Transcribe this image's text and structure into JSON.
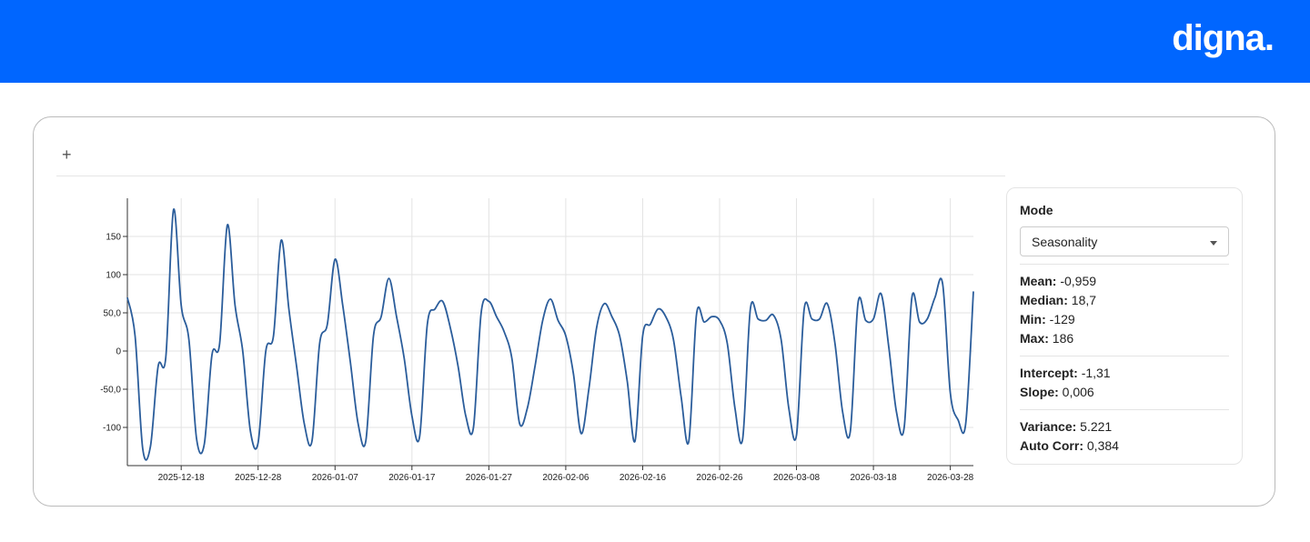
{
  "header": {
    "brand": "digna."
  },
  "toolbar": {
    "add": "+"
  },
  "chart_data": {
    "type": "line",
    "color": "#2b5d9b",
    "grid": true,
    "x": [
      "2025-12-11",
      "2025-12-12",
      "2025-12-13",
      "2025-12-14",
      "2025-12-15",
      "2025-12-16",
      "2025-12-17",
      "2025-12-18",
      "2025-12-19",
      "2025-12-20",
      "2025-12-21",
      "2025-12-22",
      "2025-12-23",
      "2025-12-24",
      "2025-12-25",
      "2025-12-26",
      "2025-12-27",
      "2025-12-28",
      "2025-12-29",
      "2025-12-30",
      "2025-12-31",
      "2026-01-01",
      "2026-01-02",
      "2026-01-03",
      "2026-01-04",
      "2026-01-05",
      "2026-01-06",
      "2026-01-07",
      "2026-01-08",
      "2026-01-09",
      "2026-01-10",
      "2026-01-11",
      "2026-01-12",
      "2026-01-13",
      "2026-01-14",
      "2026-01-15",
      "2026-01-16",
      "2026-01-17",
      "2026-01-18",
      "2026-01-19",
      "2026-01-20",
      "2026-01-21",
      "2026-01-22",
      "2026-01-23",
      "2026-01-24",
      "2026-01-25",
      "2026-01-26",
      "2026-01-27",
      "2026-01-28",
      "2026-01-29",
      "2026-01-30",
      "2026-01-31",
      "2026-02-01",
      "2026-02-02",
      "2026-02-03",
      "2026-02-04",
      "2026-02-05",
      "2026-02-06",
      "2026-02-07",
      "2026-02-08",
      "2026-02-09",
      "2026-02-10",
      "2026-02-11",
      "2026-02-12",
      "2026-02-13",
      "2026-02-14",
      "2026-02-15",
      "2026-02-16",
      "2026-02-17",
      "2026-02-18",
      "2026-02-19",
      "2026-02-20",
      "2026-02-21",
      "2026-02-22",
      "2026-02-23",
      "2026-02-24",
      "2026-02-25",
      "2026-02-26",
      "2026-02-27",
      "2026-02-28",
      "2026-03-01",
      "2026-03-02",
      "2026-03-03",
      "2026-03-04",
      "2026-03-05",
      "2026-03-06",
      "2026-03-07",
      "2026-03-08",
      "2026-03-09",
      "2026-03-10",
      "2026-03-11",
      "2026-03-12",
      "2026-03-13",
      "2026-03-14",
      "2026-03-15",
      "2026-03-16",
      "2026-03-17",
      "2026-03-18",
      "2026-03-19",
      "2026-03-20",
      "2026-03-21",
      "2026-03-22",
      "2026-03-23",
      "2026-03-24",
      "2026-03-25",
      "2026-03-26",
      "2026-03-27",
      "2026-03-28",
      "2026-03-29",
      "2026-03-30",
      "2026-03-31"
    ],
    "values": [
      70,
      20,
      -128,
      -125,
      -20,
      -8,
      185,
      60,
      15,
      -115,
      -122,
      -5,
      10,
      165,
      60,
      0,
      -105,
      -120,
      0,
      20,
      145,
      55,
      -20,
      -95,
      -118,
      10,
      35,
      120,
      60,
      -15,
      -95,
      -118,
      20,
      45,
      95,
      45,
      -10,
      -85,
      -112,
      35,
      55,
      65,
      30,
      -20,
      -85,
      -100,
      50,
      65,
      45,
      25,
      -10,
      -95,
      -75,
      -20,
      40,
      68,
      40,
      20,
      -30,
      -108,
      -50,
      30,
      62,
      45,
      20,
      -40,
      -118,
      20,
      35,
      55,
      45,
      15,
      -60,
      -118,
      48,
      38,
      45,
      40,
      10,
      -75,
      -115,
      55,
      42,
      40,
      47,
      15,
      -75,
      -110,
      55,
      42,
      42,
      62,
      10,
      -80,
      -105,
      63,
      40,
      42,
      75,
      5,
      -80,
      -100,
      70,
      38,
      42,
      70,
      88,
      -55,
      -90,
      -95,
      78
    ],
    "xlim": [
      "2025-12-11",
      "2026-03-31"
    ],
    "xticks": [
      "2025-12-18",
      "2025-12-28",
      "2026-01-07",
      "2026-01-17",
      "2026-01-27",
      "2026-02-06",
      "2026-02-16",
      "2026-02-26",
      "2026-03-08",
      "2026-03-18",
      "2026-03-28"
    ],
    "ylim": [
      -150,
      200
    ],
    "yticks": [
      {
        "value": -100,
        "label": "-100"
      },
      {
        "value": -50,
        "label": "-50,0"
      },
      0,
      {
        "value": 50,
        "label": "50,0"
      },
      100,
      150
    ]
  },
  "panel": {
    "mode_label": "Mode",
    "mode_value": "Seasonality",
    "groups": [
      [
        {
          "label": "Mean:",
          "value": "-0,959"
        },
        {
          "label": "Median:",
          "value": "18,7"
        },
        {
          "label": "Min:",
          "value": "-129"
        },
        {
          "label": "Max:",
          "value": "186"
        }
      ],
      [
        {
          "label": "Intercept:",
          "value": "-1,31"
        },
        {
          "label": "Slope:",
          "value": "0,006"
        }
      ],
      [
        {
          "label": "Variance:",
          "value": "5.221"
        },
        {
          "label": "Auto Corr:",
          "value": "0,384"
        }
      ]
    ]
  }
}
